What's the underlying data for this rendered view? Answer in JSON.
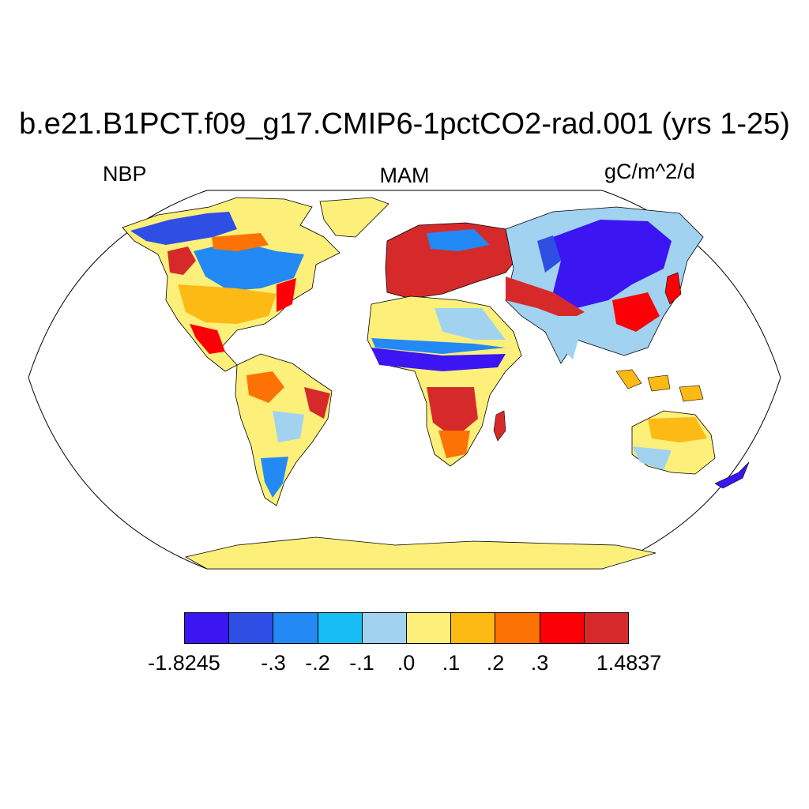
{
  "title": "b.e21.B1PCT.f09_g17.CMIP6-1pctCO2-rad.001 (yrs 1-25)",
  "left_string": "NBP",
  "center_string": "MAM",
  "right_string": "gC/m^2/d",
  "colorbar": {
    "colors": [
      "#3b16f2",
      "#2f4fe4",
      "#2389f5",
      "#19bdf5",
      "#a1d3f0",
      "#fdf07a",
      "#fdb914",
      "#fd7205",
      "#fb0007",
      "#d62a2a"
    ],
    "labels": [
      "-1.8245",
      "-.3",
      "-.2",
      "-.1",
      ".0",
      ".1",
      ".2",
      ".3",
      "1.4837"
    ]
  },
  "map": {
    "projection": "Robinson",
    "ocean_color": "#ffffff",
    "outline_color": "#000000"
  }
}
